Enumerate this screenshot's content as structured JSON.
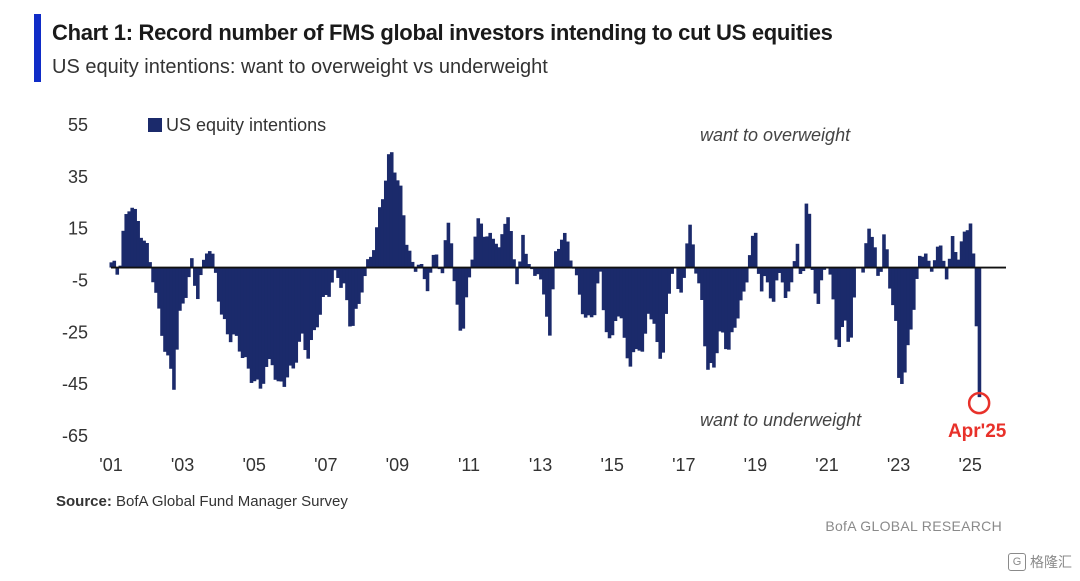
{
  "header": {
    "title": "Chart 1: Record number of FMS global investors intending to cut US equities",
    "subtitle": "US equity intentions: want to overweight vs underweight"
  },
  "footer": {
    "source_label": "Source:",
    "source_text": "BofA Global Fund Manager Survey",
    "brand": "BofA GLOBAL RESEARCH",
    "watermark": "格隆汇",
    "watermark_icon": "G"
  },
  "colors": {
    "bar": "#1b2a6b",
    "accent": "#0f2cc7",
    "highlight": "#e8312a"
  },
  "chart_data": {
    "type": "bar",
    "legend": "US equity intentions",
    "legend_position": "top-left",
    "ylim": [
      -65,
      55
    ],
    "yticks": [
      55,
      35,
      15,
      -5,
      -25,
      -45,
      -65
    ],
    "baseline": 0,
    "xlim": [
      2001.0,
      2026.0
    ],
    "xticks": [
      {
        "label": "'01",
        "year": 2001
      },
      {
        "label": "'03",
        "year": 2003
      },
      {
        "label": "'05",
        "year": 2005
      },
      {
        "label": "'07",
        "year": 2007
      },
      {
        "label": "'09",
        "year": 2009
      },
      {
        "label": "'11",
        "year": 2011
      },
      {
        "label": "'13",
        "year": 2013
      },
      {
        "label": "'15",
        "year": 2015
      },
      {
        "label": "'17",
        "year": 2017
      },
      {
        "label": "'19",
        "year": 2019
      },
      {
        "label": "'21",
        "year": 2021
      },
      {
        "label": "'23",
        "year": 2023
      },
      {
        "label": "'25",
        "year": 2025
      }
    ],
    "annotations": [
      {
        "text": "want to overweight"
      },
      {
        "text": "want to underweight"
      },
      {
        "text": "Apr'25",
        "year": 2025.25,
        "value": -50
      }
    ],
    "series_keypoints": [
      [
        2001.0,
        2
      ],
      [
        2001.2,
        -5
      ],
      [
        2001.35,
        14
      ],
      [
        2001.55,
        28
      ],
      [
        2001.75,
        18
      ],
      [
        2001.95,
        8
      ],
      [
        2002.15,
        -3
      ],
      [
        2002.4,
        -22
      ],
      [
        2002.6,
        -36
      ],
      [
        2002.75,
        -46
      ],
      [
        2002.9,
        -22
      ],
      [
        2003.1,
        -8
      ],
      [
        2003.25,
        3
      ],
      [
        2003.4,
        -10
      ],
      [
        2003.55,
        -2
      ],
      [
        2003.7,
        8
      ],
      [
        2003.9,
        -1
      ],
      [
        2004.1,
        -18
      ],
      [
        2004.3,
        -26
      ],
      [
        2004.5,
        -30
      ],
      [
        2004.8,
        -38
      ],
      [
        2005.0,
        -42
      ],
      [
        2005.15,
        -47
      ],
      [
        2005.3,
        -42
      ],
      [
        2005.5,
        -37
      ],
      [
        2005.65,
        -45
      ],
      [
        2005.9,
        -41
      ],
      [
        2006.1,
        -40
      ],
      [
        2006.3,
        -28
      ],
      [
        2006.5,
        -32
      ],
      [
        2006.75,
        -20
      ],
      [
        2006.95,
        -14
      ],
      [
        2007.1,
        -10
      ],
      [
        2007.3,
        -1
      ],
      [
        2007.5,
        -6
      ],
      [
        2007.7,
        -24
      ],
      [
        2007.9,
        -18
      ],
      [
        2008.0,
        -8
      ],
      [
        2008.2,
        4
      ],
      [
        2008.4,
        14
      ],
      [
        2008.6,
        28
      ],
      [
        2008.8,
        44
      ],
      [
        2008.95,
        38
      ],
      [
        2009.1,
        30
      ],
      [
        2009.25,
        12
      ],
      [
        2009.45,
        -4
      ],
      [
        2009.6,
        2
      ],
      [
        2009.8,
        -8
      ],
      [
        2009.95,
        3
      ],
      [
        2010.1,
        6
      ],
      [
        2010.25,
        -4
      ],
      [
        2010.45,
        21
      ],
      [
        2010.6,
        -10
      ],
      [
        2010.8,
        -24
      ],
      [
        2010.95,
        -10
      ],
      [
        2011.1,
        6
      ],
      [
        2011.3,
        18
      ],
      [
        2011.5,
        12
      ],
      [
        2011.7,
        15
      ],
      [
        2011.85,
        4
      ],
      [
        2011.95,
        14
      ],
      [
        2012.05,
        21
      ],
      [
        2012.2,
        8
      ],
      [
        2012.35,
        -4
      ],
      [
        2012.5,
        12
      ],
      [
        2012.65,
        4
      ],
      [
        2012.8,
        -8
      ],
      [
        2012.95,
        0
      ],
      [
        2013.1,
        -14
      ],
      [
        2013.25,
        -22
      ],
      [
        2013.4,
        4
      ],
      [
        2013.6,
        12
      ],
      [
        2013.75,
        7
      ],
      [
        2013.9,
        2
      ],
      [
        2014.1,
        -10
      ],
      [
        2014.3,
        -22
      ],
      [
        2014.5,
        -18
      ],
      [
        2014.65,
        -2
      ],
      [
        2014.8,
        -20
      ],
      [
        2014.95,
        -30
      ],
      [
        2015.1,
        -16
      ],
      [
        2015.3,
        -26
      ],
      [
        2015.5,
        -40
      ],
      [
        2015.7,
        -26
      ],
      [
        2015.85,
        -34
      ],
      [
        2016.0,
        -16
      ],
      [
        2016.2,
        -28
      ],
      [
        2016.4,
        -36
      ],
      [
        2016.55,
        -10
      ],
      [
        2016.7,
        4
      ],
      [
        2016.85,
        -12
      ],
      [
        2017.0,
        -5
      ],
      [
        2017.2,
        20
      ],
      [
        2017.35,
        -4
      ],
      [
        2017.5,
        -10
      ],
      [
        2017.65,
        -42
      ],
      [
        2017.85,
        -38
      ],
      [
        2018.05,
        -24
      ],
      [
        2018.25,
        -30
      ],
      [
        2018.5,
        -18
      ],
      [
        2018.7,
        -12
      ],
      [
        2018.85,
        8
      ],
      [
        2019.0,
        14
      ],
      [
        2019.15,
        -8
      ],
      [
        2019.3,
        -4
      ],
      [
        2019.5,
        -16
      ],
      [
        2019.7,
        2
      ],
      [
        2019.85,
        -14
      ],
      [
        2020.0,
        -2
      ],
      [
        2020.15,
        8
      ],
      [
        2020.3,
        -10
      ],
      [
        2020.45,
        32
      ],
      [
        2020.55,
        4
      ],
      [
        2020.75,
        -14
      ],
      [
        2020.9,
        2
      ],
      [
        2021.0,
        0
      ],
      [
        2021.15,
        -12
      ],
      [
        2021.3,
        -34
      ],
      [
        2021.5,
        -18
      ],
      [
        2021.65,
        -30
      ],
      [
        2021.85,
        4
      ],
      [
        2022.0,
        -6
      ],
      [
        2022.15,
        18
      ],
      [
        2022.3,
        10
      ],
      [
        2022.45,
        -4
      ],
      [
        2022.6,
        14
      ],
      [
        2022.75,
        -8
      ],
      [
        2022.9,
        -20
      ],
      [
        2023.0,
        -44
      ],
      [
        2023.15,
        -40
      ],
      [
        2023.3,
        -26
      ],
      [
        2023.45,
        -10
      ],
      [
        2023.6,
        2
      ],
      [
        2023.75,
        6
      ],
      [
        2023.9,
        -4
      ],
      [
        2024.05,
        12
      ],
      [
        2024.2,
        6
      ],
      [
        2024.35,
        -4
      ],
      [
        2024.5,
        8
      ],
      [
        2024.65,
        4
      ],
      [
        2024.8,
        12
      ],
      [
        2024.95,
        20
      ],
      [
        2025.05,
        14
      ],
      [
        2025.12,
        -4
      ],
      [
        2025.2,
        -36
      ],
      [
        2025.25,
        -50
      ]
    ]
  }
}
